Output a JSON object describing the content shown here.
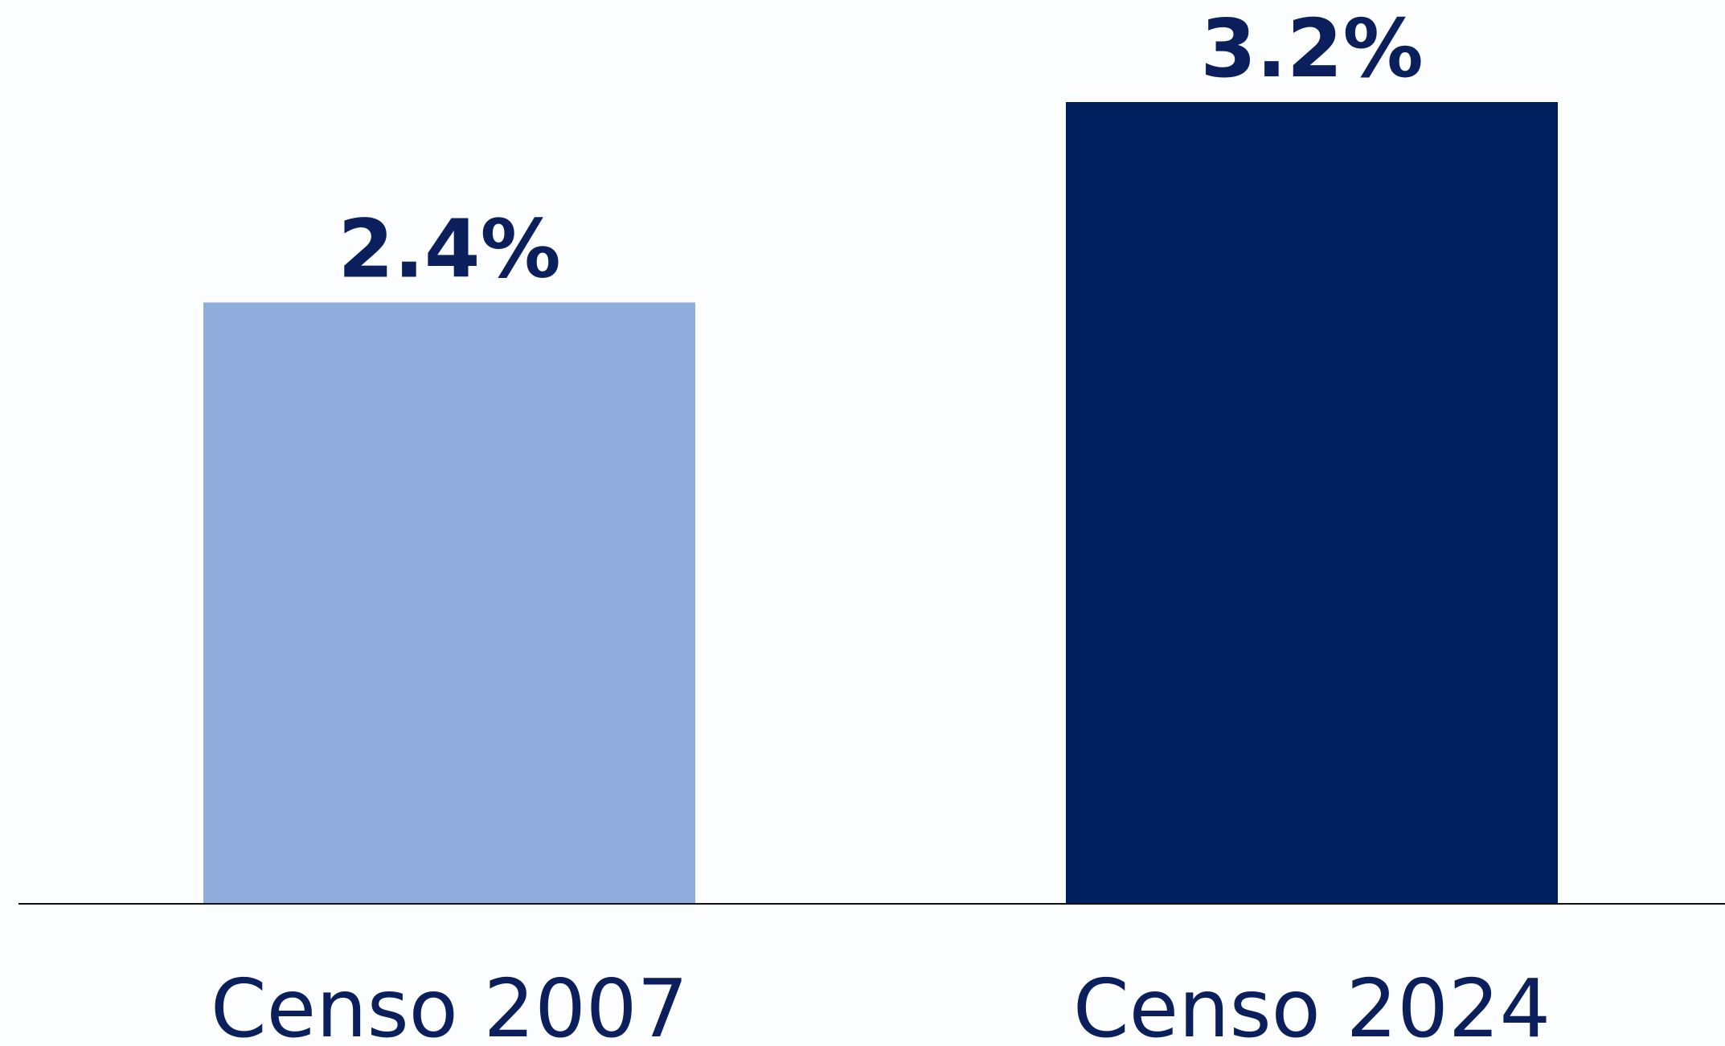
{
  "chart_data": {
    "type": "bar",
    "categories": [
      "Censo 2007",
      "Censo 2024"
    ],
    "values": [
      2.4,
      3.2
    ],
    "value_labels": [
      "2.4%",
      "3.2%"
    ],
    "colors": [
      "#90acdc",
      "#001f5e"
    ]
  }
}
